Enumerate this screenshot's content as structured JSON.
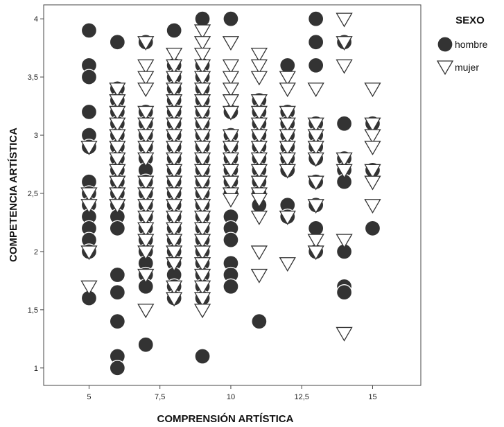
{
  "chart_data": {
    "type": "scatter",
    "xlabel": "COMPRENSIÓN ARTÍSTICA",
    "ylabel": "COMPETENCIA ARTÍSTICA",
    "xlim": [
      3.4,
      16.7
    ],
    "ylim": [
      0.85,
      4.12
    ],
    "x_ticks": [
      5,
      7.5,
      10,
      12.5,
      15
    ],
    "x_tick_labels": [
      "5",
      "7,5",
      "10",
      "12,5",
      "15"
    ],
    "y_ticks": [
      1,
      1.5,
      2,
      2.5,
      3,
      3.5,
      4
    ],
    "y_tick_labels": [
      "1",
      "1,5",
      "2",
      "2,5",
      "3",
      "3,5",
      "4"
    ],
    "grid": false,
    "legend": {
      "title": "SEXO",
      "position": "right"
    },
    "series": [
      {
        "name": "hombre",
        "marker": "filled-circle",
        "color": "#333333",
        "points": [
          [
            5,
            3.9
          ],
          [
            5,
            3.6
          ],
          [
            5,
            3.5
          ],
          [
            5,
            3.2
          ],
          [
            5,
            3.0
          ],
          [
            5,
            2.9
          ],
          [
            5,
            2.6
          ],
          [
            5,
            2.5
          ],
          [
            5,
            2.4
          ],
          [
            5,
            2.3
          ],
          [
            5,
            2.2
          ],
          [
            5,
            2.1
          ],
          [
            5,
            2.0
          ],
          [
            5,
            1.6
          ],
          [
            6,
            3.8
          ],
          [
            6,
            3.4
          ],
          [
            6,
            3.3
          ],
          [
            6,
            3.2
          ],
          [
            6,
            3.1
          ],
          [
            6,
            3.0
          ],
          [
            6,
            2.9
          ],
          [
            6,
            2.8
          ],
          [
            6,
            2.7
          ],
          [
            6,
            2.6
          ],
          [
            6,
            2.5
          ],
          [
            6,
            2.4
          ],
          [
            6,
            2.3
          ],
          [
            6,
            2.2
          ],
          [
            6,
            1.8
          ],
          [
            6,
            1.65
          ],
          [
            6,
            1.4
          ],
          [
            6,
            1.1
          ],
          [
            6,
            1.0
          ],
          [
            7,
            3.8
          ],
          [
            7,
            3.2
          ],
          [
            7,
            3.1
          ],
          [
            7,
            3.0
          ],
          [
            7,
            2.9
          ],
          [
            7,
            2.8
          ],
          [
            7,
            2.7
          ],
          [
            7,
            2.6
          ],
          [
            7,
            2.5
          ],
          [
            7,
            2.4
          ],
          [
            7,
            2.3
          ],
          [
            7,
            2.2
          ],
          [
            7,
            2.1
          ],
          [
            7,
            2.0
          ],
          [
            7,
            1.9
          ],
          [
            7,
            1.8
          ],
          [
            7,
            1.7
          ],
          [
            7,
            1.2
          ],
          [
            8,
            3.9
          ],
          [
            8,
            3.6
          ],
          [
            8,
            3.5
          ],
          [
            8,
            3.4
          ],
          [
            8,
            3.3
          ],
          [
            8,
            3.2
          ],
          [
            8,
            3.1
          ],
          [
            8,
            3.0
          ],
          [
            8,
            2.9
          ],
          [
            8,
            2.8
          ],
          [
            8,
            2.7
          ],
          [
            8,
            2.6
          ],
          [
            8,
            2.5
          ],
          [
            8,
            2.4
          ],
          [
            8,
            2.3
          ],
          [
            8,
            2.2
          ],
          [
            8,
            2.1
          ],
          [
            8,
            2.0
          ],
          [
            8,
            1.9
          ],
          [
            8,
            1.8
          ],
          [
            8,
            1.7
          ],
          [
            8,
            1.6
          ],
          [
            9,
            4.0
          ],
          [
            9,
            3.6
          ],
          [
            9,
            3.5
          ],
          [
            9,
            3.4
          ],
          [
            9,
            3.3
          ],
          [
            9,
            3.2
          ],
          [
            9,
            3.1
          ],
          [
            9,
            3.0
          ],
          [
            9,
            2.9
          ],
          [
            9,
            2.8
          ],
          [
            9,
            2.7
          ],
          [
            9,
            2.6
          ],
          [
            9,
            2.5
          ],
          [
            9,
            2.4
          ],
          [
            9,
            2.3
          ],
          [
            9,
            2.2
          ],
          [
            9,
            2.1
          ],
          [
            9,
            2.0
          ],
          [
            9,
            1.9
          ],
          [
            9,
            1.8
          ],
          [
            9,
            1.7
          ],
          [
            9,
            1.6
          ],
          [
            9,
            1.1
          ],
          [
            10,
            4.0
          ],
          [
            10,
            3.2
          ],
          [
            10,
            3.0
          ],
          [
            10,
            2.9
          ],
          [
            10,
            2.8
          ],
          [
            10,
            2.7
          ],
          [
            10,
            2.6
          ],
          [
            10,
            2.5
          ],
          [
            10,
            2.3
          ],
          [
            10,
            2.2
          ],
          [
            10,
            2.1
          ],
          [
            10,
            1.9
          ],
          [
            10,
            1.8
          ],
          [
            10,
            1.7
          ],
          [
            11,
            3.3
          ],
          [
            11,
            3.2
          ],
          [
            11,
            3.1
          ],
          [
            11,
            3.0
          ],
          [
            11,
            2.9
          ],
          [
            11,
            2.8
          ],
          [
            11,
            2.7
          ],
          [
            11,
            2.6
          ],
          [
            11,
            2.5
          ],
          [
            11,
            2.4
          ],
          [
            11,
            1.4
          ],
          [
            12,
            3.6
          ],
          [
            12,
            3.2
          ],
          [
            12,
            3.1
          ],
          [
            12,
            3.0
          ],
          [
            12,
            2.9
          ],
          [
            12,
            2.8
          ],
          [
            12,
            2.7
          ],
          [
            12,
            2.4
          ],
          [
            12,
            2.3
          ],
          [
            13,
            4.0
          ],
          [
            13,
            3.8
          ],
          [
            13,
            3.6
          ],
          [
            13,
            3.1
          ],
          [
            13,
            3.0
          ],
          [
            13,
            2.9
          ],
          [
            13,
            2.8
          ],
          [
            13,
            2.6
          ],
          [
            13,
            2.4
          ],
          [
            13,
            2.2
          ],
          [
            13,
            2.0
          ],
          [
            14,
            3.8
          ],
          [
            14,
            3.1
          ],
          [
            14,
            2.8
          ],
          [
            14,
            2.7
          ],
          [
            14,
            2.6
          ],
          [
            14,
            2.0
          ],
          [
            14,
            1.7
          ],
          [
            14,
            1.65
          ],
          [
            15,
            3.1
          ],
          [
            15,
            2.7
          ],
          [
            15,
            2.2
          ]
        ]
      },
      {
        "name": "mujer",
        "marker": "open-triangle-down",
        "color": "#333333",
        "points": [
          [
            5,
            2.9
          ],
          [
            5,
            2.5
          ],
          [
            5,
            2.4
          ],
          [
            5,
            2.0
          ],
          [
            5,
            1.7
          ],
          [
            6,
            3.4
          ],
          [
            6,
            3.3
          ],
          [
            6,
            3.2
          ],
          [
            6,
            3.1
          ],
          [
            6,
            3.0
          ],
          [
            6,
            2.9
          ],
          [
            6,
            2.8
          ],
          [
            6,
            2.7
          ],
          [
            6,
            2.6
          ],
          [
            6,
            2.5
          ],
          [
            6,
            2.4
          ],
          [
            7,
            3.8
          ],
          [
            7,
            3.6
          ],
          [
            7,
            3.5
          ],
          [
            7,
            3.4
          ],
          [
            7,
            3.2
          ],
          [
            7,
            3.1
          ],
          [
            7,
            3.0
          ],
          [
            7,
            2.9
          ],
          [
            7,
            2.8
          ],
          [
            7,
            2.6
          ],
          [
            7,
            2.5
          ],
          [
            7,
            2.4
          ],
          [
            7,
            2.3
          ],
          [
            7,
            2.2
          ],
          [
            7,
            2.1
          ],
          [
            7,
            2.0
          ],
          [
            7,
            1.8
          ],
          [
            7,
            1.5
          ],
          [
            8,
            3.7
          ],
          [
            8,
            3.6
          ],
          [
            8,
            3.5
          ],
          [
            8,
            3.4
          ],
          [
            8,
            3.3
          ],
          [
            8,
            3.2
          ],
          [
            8,
            3.1
          ],
          [
            8,
            3.0
          ],
          [
            8,
            2.9
          ],
          [
            8,
            2.8
          ],
          [
            8,
            2.7
          ],
          [
            8,
            2.6
          ],
          [
            8,
            2.5
          ],
          [
            8,
            2.4
          ],
          [
            8,
            2.3
          ],
          [
            8,
            2.2
          ],
          [
            8,
            2.1
          ],
          [
            8,
            2.0
          ],
          [
            8,
            1.9
          ],
          [
            8,
            1.7
          ],
          [
            8,
            1.6
          ],
          [
            9,
            3.9
          ],
          [
            9,
            3.8
          ],
          [
            9,
            3.7
          ],
          [
            9,
            3.6
          ],
          [
            9,
            3.5
          ],
          [
            9,
            3.4
          ],
          [
            9,
            3.3
          ],
          [
            9,
            3.2
          ],
          [
            9,
            3.1
          ],
          [
            9,
            3.0
          ],
          [
            9,
            2.9
          ],
          [
            9,
            2.8
          ],
          [
            9,
            2.7
          ],
          [
            9,
            2.6
          ],
          [
            9,
            2.5
          ],
          [
            9,
            2.4
          ],
          [
            9,
            2.3
          ],
          [
            9,
            2.2
          ],
          [
            9,
            2.1
          ],
          [
            9,
            2.0
          ],
          [
            9,
            1.9
          ],
          [
            9,
            1.8
          ],
          [
            9,
            1.7
          ],
          [
            9,
            1.6
          ],
          [
            9,
            1.5
          ],
          [
            10,
            3.8
          ],
          [
            10,
            3.6
          ],
          [
            10,
            3.5
          ],
          [
            10,
            3.4
          ],
          [
            10,
            3.3
          ],
          [
            10,
            3.2
          ],
          [
            10,
            3.0
          ],
          [
            10,
            2.9
          ],
          [
            10,
            2.8
          ],
          [
            10,
            2.7
          ],
          [
            10,
            2.6
          ],
          [
            10,
            2.5
          ],
          [
            10,
            2.45
          ],
          [
            11,
            3.7
          ],
          [
            11,
            3.6
          ],
          [
            11,
            3.5
          ],
          [
            11,
            3.3
          ],
          [
            11,
            3.2
          ],
          [
            11,
            3.1
          ],
          [
            11,
            3.0
          ],
          [
            11,
            2.9
          ],
          [
            11,
            2.8
          ],
          [
            11,
            2.7
          ],
          [
            11,
            2.6
          ],
          [
            11,
            2.5
          ],
          [
            11,
            2.45
          ],
          [
            11,
            2.3
          ],
          [
            11,
            2.0
          ],
          [
            11,
            1.8
          ],
          [
            12,
            3.5
          ],
          [
            12,
            3.4
          ],
          [
            12,
            3.2
          ],
          [
            12,
            3.1
          ],
          [
            12,
            3.0
          ],
          [
            12,
            2.9
          ],
          [
            12,
            2.8
          ],
          [
            12,
            2.7
          ],
          [
            12,
            2.3
          ],
          [
            12,
            1.9
          ],
          [
            13,
            3.4
          ],
          [
            13,
            3.1
          ],
          [
            13,
            3.0
          ],
          [
            13,
            2.9
          ],
          [
            13,
            2.8
          ],
          [
            13,
            2.6
          ],
          [
            13,
            2.4
          ],
          [
            13,
            2.1
          ],
          [
            13,
            2.0
          ],
          [
            14,
            4.0
          ],
          [
            14,
            3.8
          ],
          [
            14,
            3.6
          ],
          [
            14,
            2.8
          ],
          [
            14,
            2.7
          ],
          [
            14,
            2.1
          ],
          [
            14,
            1.3
          ],
          [
            15,
            3.4
          ],
          [
            15,
            3.1
          ],
          [
            15,
            3.0
          ],
          [
            15,
            2.9
          ],
          [
            15,
            2.7
          ],
          [
            15,
            2.6
          ],
          [
            15,
            2.4
          ]
        ]
      }
    ]
  }
}
